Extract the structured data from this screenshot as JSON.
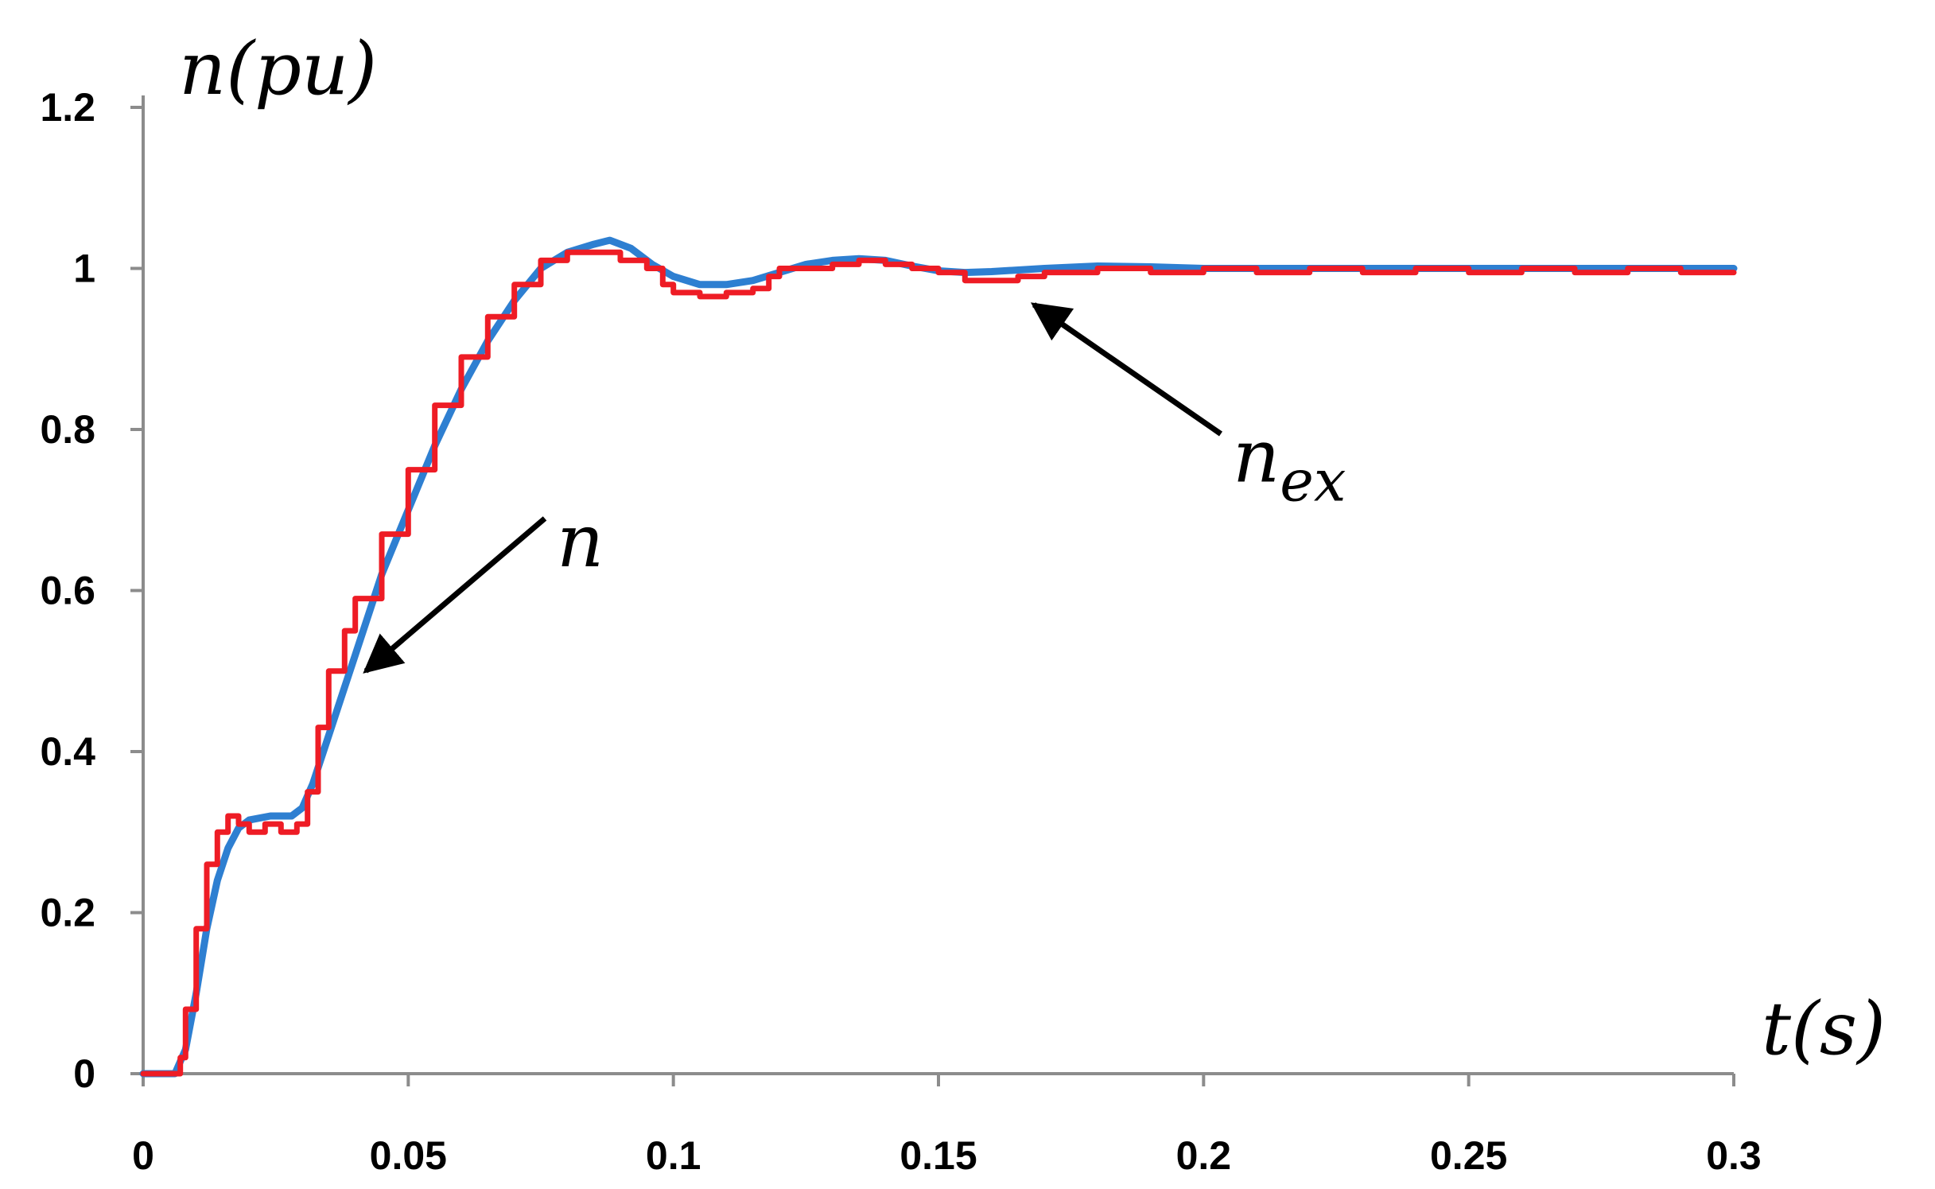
{
  "chart_data": {
    "type": "line",
    "title": "",
    "xlabel": "t(s)",
    "ylabel": "n(pu)",
    "xlim": [
      0,
      0.3
    ],
    "ylim": [
      0,
      1.2
    ],
    "grid": false,
    "x_ticks": [
      0,
      0.05,
      0.1,
      0.15,
      0.2,
      0.25,
      0.3
    ],
    "x_tick_labels": [
      "0",
      "0.05",
      "0.1",
      "0.15",
      "0.2",
      "0.25",
      "0.3"
    ],
    "y_ticks": [
      0,
      0.2,
      0.4,
      0.6,
      0.8,
      1.0,
      1.2
    ],
    "y_tick_labels": [
      "0",
      "0.2",
      "0.4",
      "0.6",
      "0.8",
      "1",
      "1.2"
    ],
    "series": [
      {
        "name": "n",
        "color": "#2e7fd1",
        "points": [
          [
            0,
            0
          ],
          [
            0.006,
            0
          ],
          [
            0.008,
            0.03
          ],
          [
            0.01,
            0.1
          ],
          [
            0.012,
            0.18
          ],
          [
            0.014,
            0.24
          ],
          [
            0.016,
            0.28
          ],
          [
            0.018,
            0.305
          ],
          [
            0.02,
            0.315
          ],
          [
            0.024,
            0.32
          ],
          [
            0.028,
            0.32
          ],
          [
            0.03,
            0.33
          ],
          [
            0.032,
            0.36
          ],
          [
            0.035,
            0.42
          ],
          [
            0.038,
            0.48
          ],
          [
            0.04,
            0.52
          ],
          [
            0.045,
            0.62
          ],
          [
            0.05,
            0.7
          ],
          [
            0.055,
            0.78
          ],
          [
            0.06,
            0.85
          ],
          [
            0.065,
            0.91
          ],
          [
            0.07,
            0.96
          ],
          [
            0.075,
            1.0
          ],
          [
            0.08,
            1.02
          ],
          [
            0.085,
            1.03
          ],
          [
            0.088,
            1.035
          ],
          [
            0.092,
            1.025
          ],
          [
            0.096,
            1.005
          ],
          [
            0.1,
            0.99
          ],
          [
            0.105,
            0.98
          ],
          [
            0.11,
            0.98
          ],
          [
            0.115,
            0.985
          ],
          [
            0.12,
            0.995
          ],
          [
            0.125,
            1.005
          ],
          [
            0.13,
            1.01
          ],
          [
            0.135,
            1.012
          ],
          [
            0.14,
            1.01
          ],
          [
            0.145,
            1.003
          ],
          [
            0.15,
            0.997
          ],
          [
            0.155,
            0.995
          ],
          [
            0.16,
            0.996
          ],
          [
            0.17,
            1.0
          ],
          [
            0.18,
            1.003
          ],
          [
            0.19,
            1.002
          ],
          [
            0.2,
            1.0
          ],
          [
            0.22,
            1.0
          ],
          [
            0.25,
            1.0
          ],
          [
            0.28,
            1.0
          ],
          [
            0.3,
            1.0
          ]
        ]
      },
      {
        "name": "n_ex",
        "color": "#ee1c25",
        "points": [
          [
            0,
            0
          ],
          [
            0.006,
            0
          ],
          [
            0.007,
            0.02
          ],
          [
            0.008,
            0.08
          ],
          [
            0.01,
            0.18
          ],
          [
            0.012,
            0.26
          ],
          [
            0.014,
            0.3
          ],
          [
            0.016,
            0.32
          ],
          [
            0.018,
            0.31
          ],
          [
            0.02,
            0.3
          ],
          [
            0.023,
            0.31
          ],
          [
            0.026,
            0.3
          ],
          [
            0.029,
            0.31
          ],
          [
            0.031,
            0.35
          ],
          [
            0.033,
            0.43
          ],
          [
            0.035,
            0.5
          ],
          [
            0.038,
            0.55
          ],
          [
            0.04,
            0.59
          ],
          [
            0.045,
            0.67
          ],
          [
            0.05,
            0.75
          ],
          [
            0.055,
            0.83
          ],
          [
            0.06,
            0.89
          ],
          [
            0.065,
            0.94
          ],
          [
            0.07,
            0.98
          ],
          [
            0.075,
            1.01
          ],
          [
            0.08,
            1.02
          ],
          [
            0.085,
            1.02
          ],
          [
            0.09,
            1.01
          ],
          [
            0.095,
            1.0
          ],
          [
            0.098,
            0.98
          ],
          [
            0.1,
            0.97
          ],
          [
            0.105,
            0.965
          ],
          [
            0.11,
            0.97
          ],
          [
            0.115,
            0.975
          ],
          [
            0.118,
            0.99
          ],
          [
            0.12,
            1.0
          ],
          [
            0.125,
            1.0
          ],
          [
            0.13,
            1.005
          ],
          [
            0.135,
            1.01
          ],
          [
            0.14,
            1.005
          ],
          [
            0.145,
            1.0
          ],
          [
            0.15,
            0.995
          ],
          [
            0.155,
            0.985
          ],
          [
            0.16,
            0.985
          ],
          [
            0.165,
            0.99
          ],
          [
            0.17,
            0.995
          ],
          [
            0.18,
            1.0
          ],
          [
            0.19,
            0.995
          ],
          [
            0.2,
            1.0
          ],
          [
            0.21,
            0.995
          ],
          [
            0.22,
            1.0
          ],
          [
            0.23,
            0.995
          ],
          [
            0.24,
            1.0
          ],
          [
            0.25,
            0.995
          ],
          [
            0.26,
            1.0
          ],
          [
            0.27,
            0.995
          ],
          [
            0.28,
            1.0
          ],
          [
            0.29,
            0.995
          ],
          [
            0.3,
            0.995
          ]
        ]
      }
    ],
    "annotations": [
      {
        "label": "n",
        "points_to_series": "n",
        "text_at": [
          0.078,
          0.65
        ],
        "arrow_to": [
          0.042,
          0.5
        ]
      },
      {
        "label": "n_ex",
        "label_base": "n",
        "label_sub": "ex",
        "points_to_series": "n_ex",
        "text_at": [
          0.2055,
          0.755
        ],
        "arrow_to": [
          0.168,
          0.955
        ]
      }
    ]
  }
}
